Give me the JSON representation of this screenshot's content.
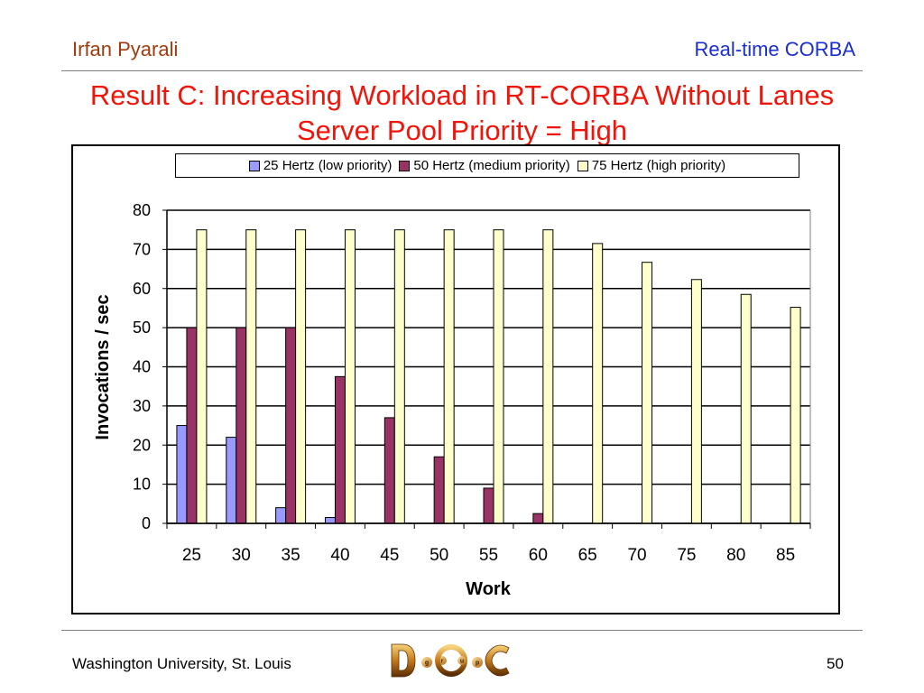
{
  "header": {
    "left": "Irfan Pyarali",
    "right": "Real-time CORBA"
  },
  "title": {
    "line1": "Result C: Increasing Workload in RT-CORBA Without Lanes",
    "line2": "Server Pool Priority = High"
  },
  "footer": {
    "left": "Washington University, St. Louis",
    "page": "50"
  },
  "logo": {
    "letters": [
      "D",
      "g",
      "r",
      "u",
      "p",
      "C"
    ]
  },
  "colors": {
    "header_left": "#a13a0c",
    "header_right": "#1a2fd0",
    "title": "#f0140a",
    "series": [
      "#9999ff",
      "#993366",
      "#ffffcc"
    ]
  },
  "chart_data": {
    "type": "bar",
    "categories": [
      "25",
      "30",
      "35",
      "40",
      "45",
      "50",
      "55",
      "60",
      "65",
      "70",
      "75",
      "80",
      "85"
    ],
    "series": [
      {
        "name": "25 Hertz (low priority)",
        "values": [
          25,
          22,
          4,
          1.5,
          0,
          0,
          0,
          0,
          0,
          0,
          0,
          0,
          0
        ]
      },
      {
        "name": "50 Hertz (medium priority)",
        "values": [
          50,
          50,
          50,
          37.5,
          27,
          17,
          9,
          2.5,
          0,
          0,
          0,
          0,
          0
        ]
      },
      {
        "name": "75 Hertz (high priority)",
        "values": [
          75,
          75,
          75,
          75,
          75,
          75,
          75,
          75,
          71.5,
          66.7,
          62.3,
          58.5,
          55.2
        ]
      }
    ],
    "xlabel": "Work",
    "ylabel": "Invocations / sec",
    "ylim": [
      0,
      80
    ],
    "yticks": [
      0,
      10,
      20,
      30,
      40,
      50,
      60,
      70,
      80
    ],
    "grid": true,
    "legend": "top"
  }
}
